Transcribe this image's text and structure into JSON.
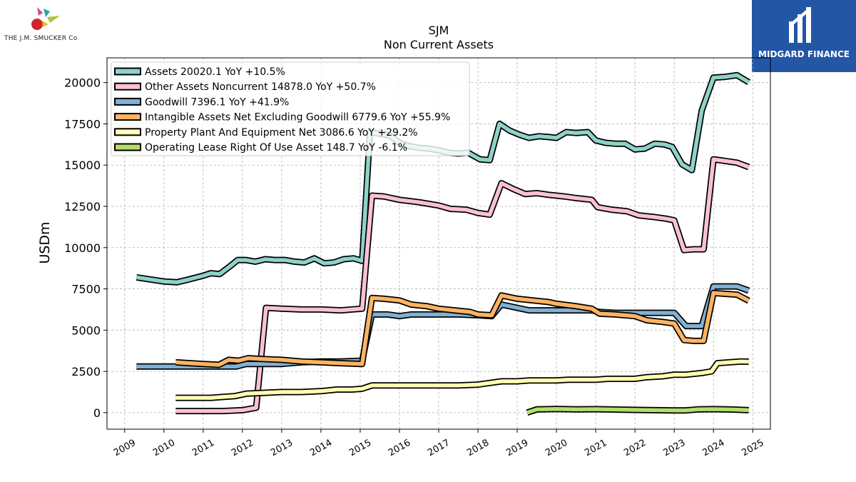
{
  "header": {
    "company_logo_text": "THE J.M. SMUCKER Co",
    "publisher_logo_text": "MIDGARD FINANCE"
  },
  "colors": {
    "assets": "#8dd3c7",
    "other_assets_noncurrent": "#fbc0d8",
    "goodwill": "#80b1d3",
    "intangible": "#fdb462",
    "ppe": "#ffffb3",
    "operating_lease": "#b3de69",
    "publisher_bg": "#2456a6"
  },
  "chart_data": {
    "type": "line",
    "title": "SJM",
    "subtitle": "Non Current  Assets",
    "ylabel": "USDm",
    "xlabel": "",
    "ylim": [
      -1000,
      21500
    ],
    "xlim": [
      2008.55,
      2025.45
    ],
    "yticks": [
      0,
      2500,
      5000,
      7500,
      10000,
      12500,
      15000,
      17500,
      20000
    ],
    "xticks": [
      "2009",
      "2010",
      "2011",
      "2012",
      "2013",
      "2014",
      "2015",
      "2016",
      "2017",
      "2018",
      "2019",
      "2020",
      "2021",
      "2022",
      "2023",
      "2024",
      "2025"
    ],
    "grid": true,
    "legend_position": "top-left",
    "series": [
      {
        "name": "Assets",
        "legend": "Assets  20020.1 YoY +10.5%",
        "color_key": "assets",
        "points": [
          [
            2009.3,
            8200
          ],
          [
            2010.0,
            7950
          ],
          [
            2010.33,
            7900
          ],
          [
            2010.6,
            8050
          ],
          [
            2011.0,
            8300
          ],
          [
            2011.2,
            8450
          ],
          [
            2011.42,
            8400
          ],
          [
            2011.7,
            8900
          ],
          [
            2011.88,
            9250
          ],
          [
            2012.08,
            9250
          ],
          [
            2012.33,
            9150
          ],
          [
            2012.58,
            9300
          ],
          [
            2012.83,
            9250
          ],
          [
            2013.08,
            9250
          ],
          [
            2013.33,
            9150
          ],
          [
            2013.58,
            9100
          ],
          [
            2013.83,
            9350
          ],
          [
            2014.08,
            9050
          ],
          [
            2014.33,
            9100
          ],
          [
            2014.58,
            9300
          ],
          [
            2014.83,
            9350
          ],
          [
            2015.05,
            9200
          ],
          [
            2015.25,
            17000
          ],
          [
            2015.5,
            16900
          ],
          [
            2015.75,
            16800
          ],
          [
            2016.0,
            16350
          ],
          [
            2016.25,
            16150
          ],
          [
            2016.5,
            16050
          ],
          [
            2016.75,
            16000
          ],
          [
            2017.0,
            15900
          ],
          [
            2017.25,
            15750
          ],
          [
            2017.5,
            15700
          ],
          [
            2017.75,
            15750
          ],
          [
            2017.9,
            15550
          ],
          [
            2018.05,
            15350
          ],
          [
            2018.3,
            15300
          ],
          [
            2018.55,
            17500
          ],
          [
            2018.8,
            17100
          ],
          [
            2019.05,
            16850
          ],
          [
            2019.3,
            16650
          ],
          [
            2019.55,
            16750
          ],
          [
            2019.8,
            16700
          ],
          [
            2020.0,
            16650
          ],
          [
            2020.25,
            17000
          ],
          [
            2020.5,
            16950
          ],
          [
            2020.8,
            17000
          ],
          [
            2021.0,
            16500
          ],
          [
            2021.25,
            16350
          ],
          [
            2021.5,
            16300
          ],
          [
            2021.75,
            16300
          ],
          [
            2022.0,
            15950
          ],
          [
            2022.25,
            16000
          ],
          [
            2022.5,
            16300
          ],
          [
            2022.75,
            16250
          ],
          [
            2022.95,
            16100
          ],
          [
            2023.2,
            15050
          ],
          [
            2023.45,
            14700
          ],
          [
            2023.7,
            18300
          ],
          [
            2024.0,
            20300
          ],
          [
            2024.3,
            20350
          ],
          [
            2024.6,
            20450
          ],
          [
            2024.9,
            20020
          ]
        ]
      },
      {
        "name": "Other Assets Noncurrent",
        "legend": "Other Assets Noncurrent  14878.0 YoY +50.7%",
        "color_key": "other_assets_noncurrent",
        "points": [
          [
            2010.3,
            100
          ],
          [
            2011.0,
            100
          ],
          [
            2011.5,
            100
          ],
          [
            2012.0,
            150
          ],
          [
            2012.35,
            300
          ],
          [
            2012.6,
            6350
          ],
          [
            2013.0,
            6300
          ],
          [
            2013.5,
            6250
          ],
          [
            2014.0,
            6250
          ],
          [
            2014.5,
            6200
          ],
          [
            2015.05,
            6300
          ],
          [
            2015.3,
            13150
          ],
          [
            2015.6,
            13100
          ],
          [
            2016.0,
            12900
          ],
          [
            2016.5,
            12750
          ],
          [
            2017.0,
            12550
          ],
          [
            2017.3,
            12350
          ],
          [
            2017.7,
            12300
          ],
          [
            2018.0,
            12100
          ],
          [
            2018.3,
            12000
          ],
          [
            2018.6,
            13900
          ],
          [
            2018.9,
            13550
          ],
          [
            2019.2,
            13250
          ],
          [
            2019.5,
            13300
          ],
          [
            2019.8,
            13200
          ],
          [
            2020.2,
            13100
          ],
          [
            2020.5,
            13000
          ],
          [
            2020.9,
            12900
          ],
          [
            2021.05,
            12450
          ],
          [
            2021.4,
            12300
          ],
          [
            2021.8,
            12200
          ],
          [
            2022.1,
            11950
          ],
          [
            2022.5,
            11850
          ],
          [
            2022.8,
            11750
          ],
          [
            2023.0,
            11650
          ],
          [
            2023.25,
            9850
          ],
          [
            2023.5,
            9900
          ],
          [
            2023.75,
            9900
          ],
          [
            2024.0,
            15350
          ],
          [
            2024.3,
            15250
          ],
          [
            2024.6,
            15150
          ],
          [
            2024.9,
            14878
          ]
        ]
      },
      {
        "name": "Goodwill",
        "legend": "Goodwill  7396.1 YoY +41.9%",
        "color_key": "goodwill",
        "points": [
          [
            2009.3,
            2800
          ],
          [
            2010.0,
            2800
          ],
          [
            2010.5,
            2800
          ],
          [
            2011.0,
            2800
          ],
          [
            2011.5,
            2800
          ],
          [
            2011.85,
            2800
          ],
          [
            2012.1,
            2950
          ],
          [
            2012.5,
            2950
          ],
          [
            2013.0,
            2950
          ],
          [
            2013.5,
            3050
          ],
          [
            2014.0,
            3100
          ],
          [
            2014.5,
            3100
          ],
          [
            2015.05,
            3150
          ],
          [
            2015.3,
            5950
          ],
          [
            2015.7,
            5950
          ],
          [
            2016.0,
            5850
          ],
          [
            2016.3,
            5950
          ],
          [
            2016.7,
            5950
          ],
          [
            2017.0,
            5950
          ],
          [
            2017.5,
            5950
          ],
          [
            2018.0,
            5900
          ],
          [
            2018.35,
            5850
          ],
          [
            2018.6,
            6550
          ],
          [
            2019.0,
            6350
          ],
          [
            2019.3,
            6200
          ],
          [
            2019.7,
            6200
          ],
          [
            2020.0,
            6200
          ],
          [
            2020.5,
            6200
          ],
          [
            2020.9,
            6200
          ],
          [
            2021.1,
            6100
          ],
          [
            2021.5,
            6050
          ],
          [
            2022.0,
            6050
          ],
          [
            2022.5,
            6050
          ],
          [
            2023.0,
            6050
          ],
          [
            2023.3,
            5250
          ],
          [
            2023.7,
            5250
          ],
          [
            2024.0,
            7650
          ],
          [
            2024.3,
            7650
          ],
          [
            2024.6,
            7650
          ],
          [
            2024.9,
            7396
          ]
        ]
      },
      {
        "name": "Intangible Assets Net Excluding Goodwill",
        "legend": "Intangible Assets Net Excluding Goodwill  6779.6 YoY +55.9%",
        "color_key": "intangible",
        "points": [
          [
            2010.3,
            3050
          ],
          [
            2011.0,
            2950
          ],
          [
            2011.4,
            2900
          ],
          [
            2011.65,
            3200
          ],
          [
            2011.9,
            3150
          ],
          [
            2012.15,
            3300
          ],
          [
            2012.5,
            3250
          ],
          [
            2013.0,
            3200
          ],
          [
            2013.5,
            3100
          ],
          [
            2014.0,
            3050
          ],
          [
            2014.5,
            3000
          ],
          [
            2015.05,
            2950
          ],
          [
            2015.3,
            6950
          ],
          [
            2015.6,
            6900
          ],
          [
            2016.0,
            6800
          ],
          [
            2016.3,
            6550
          ],
          [
            2016.7,
            6450
          ],
          [
            2017.0,
            6300
          ],
          [
            2017.4,
            6200
          ],
          [
            2017.8,
            6100
          ],
          [
            2018.0,
            5950
          ],
          [
            2018.35,
            5900
          ],
          [
            2018.6,
            7100
          ],
          [
            2019.0,
            6900
          ],
          [
            2019.4,
            6800
          ],
          [
            2019.8,
            6700
          ],
          [
            2020.0,
            6600
          ],
          [
            2020.5,
            6450
          ],
          [
            2020.9,
            6300
          ],
          [
            2021.1,
            6000
          ],
          [
            2021.5,
            5950
          ],
          [
            2022.0,
            5850
          ],
          [
            2022.3,
            5600
          ],
          [
            2022.7,
            5500
          ],
          [
            2023.0,
            5400
          ],
          [
            2023.25,
            4400
          ],
          [
            2023.5,
            4350
          ],
          [
            2023.75,
            4350
          ],
          [
            2024.0,
            7250
          ],
          [
            2024.3,
            7200
          ],
          [
            2024.6,
            7150
          ],
          [
            2024.9,
            6780
          ]
        ]
      },
      {
        "name": "Property Plant And Equipment Net",
        "legend": "Property Plant And Equipment Net  3086.6 YoY +29.2%",
        "color_key": "ppe",
        "points": [
          [
            2010.3,
            900
          ],
          [
            2010.8,
            900
          ],
          [
            2011.2,
            900
          ],
          [
            2011.5,
            950
          ],
          [
            2011.8,
            1000
          ],
          [
            2012.1,
            1150
          ],
          [
            2012.5,
            1200
          ],
          [
            2013.0,
            1250
          ],
          [
            2013.5,
            1250
          ],
          [
            2014.0,
            1300
          ],
          [
            2014.4,
            1400
          ],
          [
            2014.8,
            1400
          ],
          [
            2015.05,
            1450
          ],
          [
            2015.3,
            1650
          ],
          [
            2015.6,
            1650
          ],
          [
            2016.0,
            1650
          ],
          [
            2016.5,
            1650
          ],
          [
            2017.0,
            1650
          ],
          [
            2017.5,
            1650
          ],
          [
            2018.0,
            1700
          ],
          [
            2018.3,
            1800
          ],
          [
            2018.6,
            1900
          ],
          [
            2019.0,
            1900
          ],
          [
            2019.3,
            1950
          ],
          [
            2019.7,
            1950
          ],
          [
            2020.0,
            1950
          ],
          [
            2020.3,
            2000
          ],
          [
            2020.7,
            2000
          ],
          [
            2021.0,
            2000
          ],
          [
            2021.3,
            2050
          ],
          [
            2021.7,
            2050
          ],
          [
            2022.0,
            2050
          ],
          [
            2022.3,
            2150
          ],
          [
            2022.7,
            2200
          ],
          [
            2023.0,
            2300
          ],
          [
            2023.3,
            2300
          ],
          [
            2023.7,
            2400
          ],
          [
            2023.95,
            2500
          ],
          [
            2024.1,
            3000
          ],
          [
            2024.4,
            3050
          ],
          [
            2024.7,
            3100
          ],
          [
            2024.9,
            3087
          ]
        ]
      },
      {
        "name": "Operating Lease Right Of Use Asset",
        "legend": "Operating Lease Right Of Use Asset  148.7 YoY -6.1%",
        "color_key": "operating_lease",
        "points": [
          [
            2019.25,
            0
          ],
          [
            2019.5,
            200
          ],
          [
            2020.0,
            220
          ],
          [
            2020.5,
            200
          ],
          [
            2021.0,
            210
          ],
          [
            2021.5,
            190
          ],
          [
            2022.0,
            170
          ],
          [
            2022.5,
            150
          ],
          [
            2023.0,
            140
          ],
          [
            2023.3,
            140
          ],
          [
            2023.6,
            200
          ],
          [
            2024.0,
            210
          ],
          [
            2024.5,
            190
          ],
          [
            2024.9,
            149
          ]
        ]
      }
    ]
  }
}
